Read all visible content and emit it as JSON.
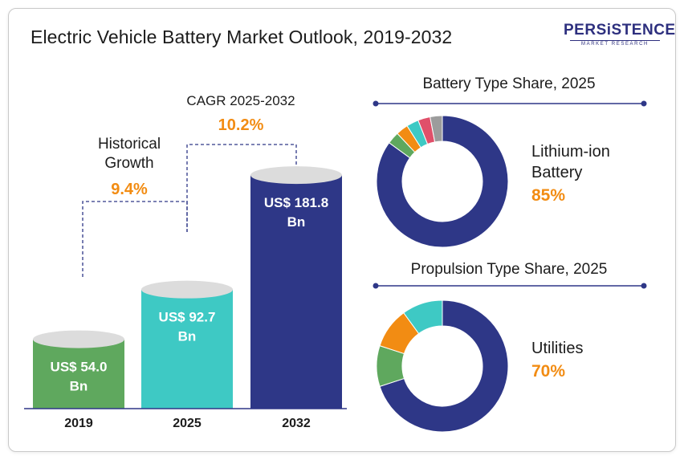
{
  "title": "Electric Vehicle Battery Market Outlook, 2019-2032",
  "logo": {
    "main": "PERSiSTENCE",
    "sub": "MARKET RESEARCH"
  },
  "annotations": {
    "historical_label": [
      "Historical",
      "Growth"
    ],
    "historical_value": "9.4%",
    "cagr_label": "CAGR 2025-2032",
    "cagr_value": "10.2%"
  },
  "colors": {
    "green": "#5fa85e",
    "teal": "#3ec9c4",
    "navy": "#2e3787",
    "orange": "#f28c13",
    "bar_top": "#dcdcdc"
  },
  "chart_data": [
    {
      "type": "bar",
      "categories": [
        "2019",
        "2025",
        "2032"
      ],
      "values": [
        54.0,
        92.7,
        181.8
      ],
      "data_labels": [
        [
          "US$ 54.0",
          "Bn"
        ],
        [
          "US$ 92.7",
          "Bn"
        ],
        [
          "US$ 181.8",
          "Bn"
        ]
      ],
      "colors": [
        "#5fa85e",
        "#3ec9c4",
        "#2e3787"
      ],
      "xlabel": "",
      "ylabel": "",
      "ylim": [
        0,
        200
      ],
      "grid": false
    },
    {
      "type": "pie",
      "title": "Battery Type  Share, 2025",
      "highlight_label": [
        "Lithium-ion",
        "Battery"
      ],
      "highlight_value": "85%",
      "slices": [
        {
          "value": 85,
          "color": "#2e3787"
        },
        {
          "value": 3,
          "color": "#5fa85e"
        },
        {
          "value": 3,
          "color": "#f28c13"
        },
        {
          "value": 3,
          "color": "#3ec9c4"
        },
        {
          "value": 3,
          "color": "#e0506a"
        },
        {
          "value": 3,
          "color": "#9c9c9c"
        }
      ]
    },
    {
      "type": "pie",
      "title": "Propulsion Type  Share, 2025",
      "highlight_label": [
        "Utilities"
      ],
      "highlight_value": "70%",
      "slices": [
        {
          "value": 70,
          "color": "#2e3787"
        },
        {
          "value": 10,
          "color": "#5fa85e"
        },
        {
          "value": 10,
          "color": "#f28c13"
        },
        {
          "value": 10,
          "color": "#3ec9c4"
        }
      ]
    }
  ]
}
